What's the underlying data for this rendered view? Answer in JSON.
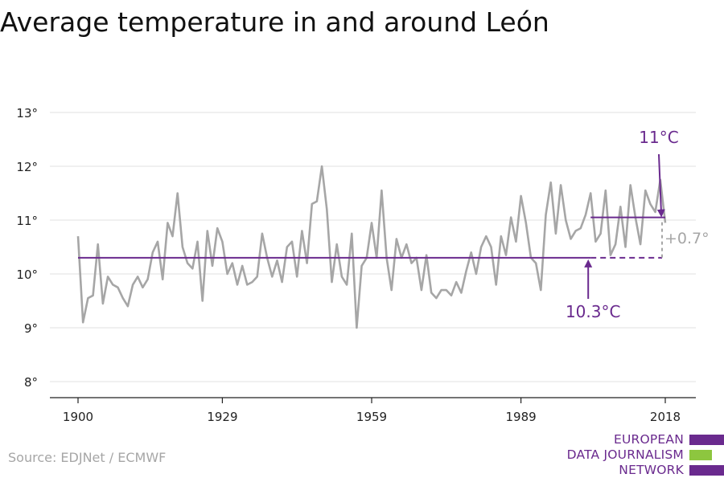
{
  "title": "Average temperature in and around León",
  "source": "Source: EDJNet / ECMWF",
  "logo": {
    "lines": [
      "EUROPEAN",
      "DATA JOURNALISM",
      "NETWORK"
    ],
    "colors": [
      "#6a2a8e",
      "#8dc63f",
      "#6a2a8e"
    ]
  },
  "colors": {
    "series": "#a6a6a6",
    "reference": "#6a2a8e",
    "axis": "#222222",
    "grid": "#e2e2e2"
  },
  "chart_data": {
    "type": "line",
    "title": "Average temperature in and around León",
    "xlim": [
      1900,
      2018
    ],
    "ylim": [
      7.7,
      13.2
    ],
    "y_ticks": [
      8,
      9,
      10,
      11,
      12,
      13
    ],
    "y_tick_labels": [
      "8°",
      "9°",
      "10°",
      "11°",
      "12°",
      "13°"
    ],
    "x_ticks": [
      1900,
      1929,
      1959,
      1989,
      2018
    ],
    "x_tick_labels": [
      "1900",
      "1929",
      "1959",
      "1989",
      "2018"
    ],
    "grid": true,
    "series": [
      {
        "x": [
          1900,
          1901,
          1902,
          1903,
          1904,
          1905,
          1906,
          1907,
          1908,
          1909,
          1910,
          1911,
          1912,
          1913,
          1914,
          1915,
          1916,
          1917,
          1918,
          1919,
          1920,
          1921,
          1922,
          1923,
          1924,
          1925,
          1926,
          1927,
          1928,
          1929,
          1930,
          1931,
          1932,
          1933,
          1934,
          1935,
          1936,
          1937,
          1938,
          1939,
          1940,
          1941,
          1942,
          1943,
          1944,
          1945,
          1946,
          1947,
          1948,
          1949,
          1950,
          1951,
          1952,
          1953,
          1954,
          1955,
          1956,
          1957,
          1958,
          1959,
          1960,
          1961,
          1962,
          1963,
          1964,
          1965,
          1966,
          1967,
          1968,
          1969,
          1970,
          1971,
          1972,
          1973,
          1974,
          1975,
          1976,
          1977,
          1978,
          1979,
          1980,
          1981,
          1982,
          1983,
          1984,
          1985,
          1986,
          1987,
          1988,
          1989,
          1990,
          1991,
          1992,
          1993,
          1994,
          1995,
          1996,
          1997,
          1998,
          1999,
          2000,
          2001,
          2002,
          2003,
          2004,
          2005,
          2006,
          2007,
          2008,
          2009,
          2010,
          2011,
          2012,
          2013,
          2014,
          2015,
          2016,
          2017,
          2018
        ],
        "values": [
          10.7,
          9.1,
          9.55,
          9.6,
          10.55,
          9.45,
          9.95,
          9.8,
          9.75,
          9.55,
          9.4,
          9.8,
          9.95,
          9.75,
          9.9,
          10.4,
          10.6,
          9.9,
          10.95,
          10.7,
          11.5,
          10.5,
          10.2,
          10.1,
          10.6,
          9.5,
          10.8,
          10.15,
          10.85,
          10.6,
          10.0,
          10.2,
          9.8,
          10.15,
          9.8,
          9.85,
          9.95,
          10.75,
          10.3,
          9.95,
          10.25,
          9.85,
          10.5,
          10.6,
          9.95,
          10.8,
          10.2,
          11.3,
          11.35,
          12.0,
          11.2,
          9.85,
          10.55,
          9.95,
          9.8,
          10.75,
          9.0,
          10.15,
          10.3,
          10.95,
          10.3,
          11.55,
          10.3,
          9.7,
          10.65,
          10.3,
          10.55,
          10.2,
          10.3,
          9.7,
          10.35,
          9.65,
          9.55,
          9.7,
          9.7,
          9.6,
          9.85,
          9.65,
          10.05,
          10.4,
          10.0,
          10.5,
          10.7,
          10.5,
          9.8,
          10.7,
          10.35,
          11.05,
          10.6,
          11.45,
          10.95,
          10.3,
          10.2,
          9.7,
          11.1,
          11.7,
          10.75,
          11.65,
          11.0,
          10.65,
          10.8,
          10.85,
          11.1,
          11.5,
          10.6,
          10.75,
          11.55,
          10.35,
          10.55,
          11.25,
          10.5,
          11.65,
          11.05,
          10.55,
          11.55,
          11.3,
          11.15,
          11.75,
          10.95
        ]
      }
    ],
    "reference_lines": [
      {
        "label": "10.3°C",
        "value": 10.3,
        "x_range": [
          1900,
          2003
        ]
      },
      {
        "label": "11°C",
        "value": 11.05,
        "x_range": [
          2003,
          2018
        ]
      }
    ],
    "difference_label": "+0.7°"
  }
}
